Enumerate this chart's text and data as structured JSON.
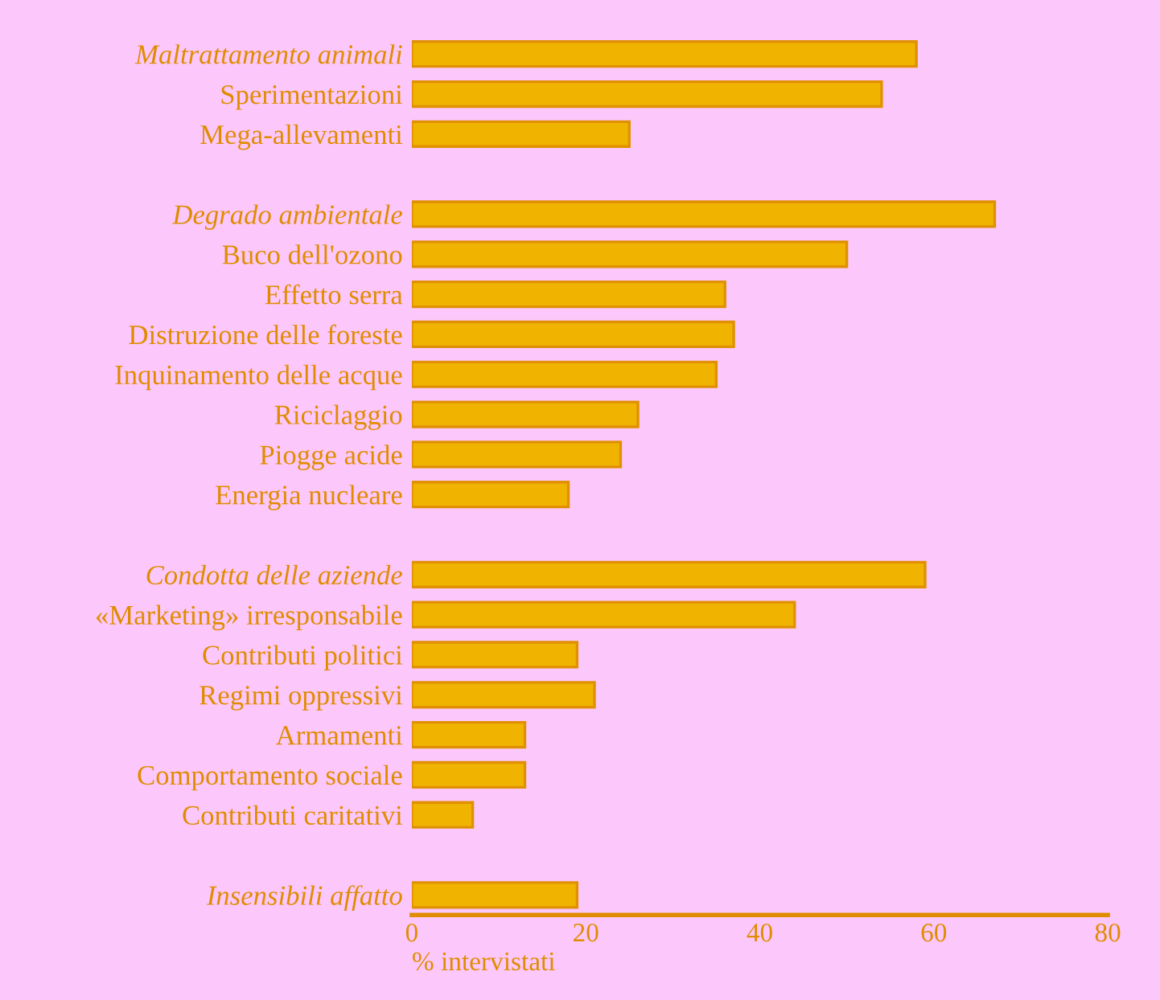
{
  "chart_data": {
    "type": "bar",
    "orientation": "horizontal",
    "categories": [
      "Maltrattamento animali",
      "Sperimentazioni",
      "Mega-allevamenti",
      null,
      "Degrado ambientale",
      "Buco dell'ozono",
      "Effetto serra",
      "Distruzione delle foreste",
      "Inquinamento delle acque",
      "Riciclaggio",
      "Piogge acide",
      "Energia nucleare",
      null,
      "Condotta delle aziende",
      "«Marketing» irresponsabile",
      "Contributi politici",
      "Regimi oppressivi",
      "Armamenti",
      "Comportamento sociale",
      "Contributi caritativi",
      null,
      "Insensibili affatto"
    ],
    "values": [
      58,
      54,
      25,
      null,
      67,
      50,
      36,
      37,
      35,
      26,
      24,
      18,
      null,
      59,
      44,
      19,
      21,
      13,
      13,
      7,
      null,
      19
    ],
    "color": "#f0b400",
    "xlabel": "% intervistati",
    "xlim": [
      0,
      80
    ],
    "xticks": [
      0,
      20,
      40,
      60,
      80
    ],
    "grid": false
  }
}
